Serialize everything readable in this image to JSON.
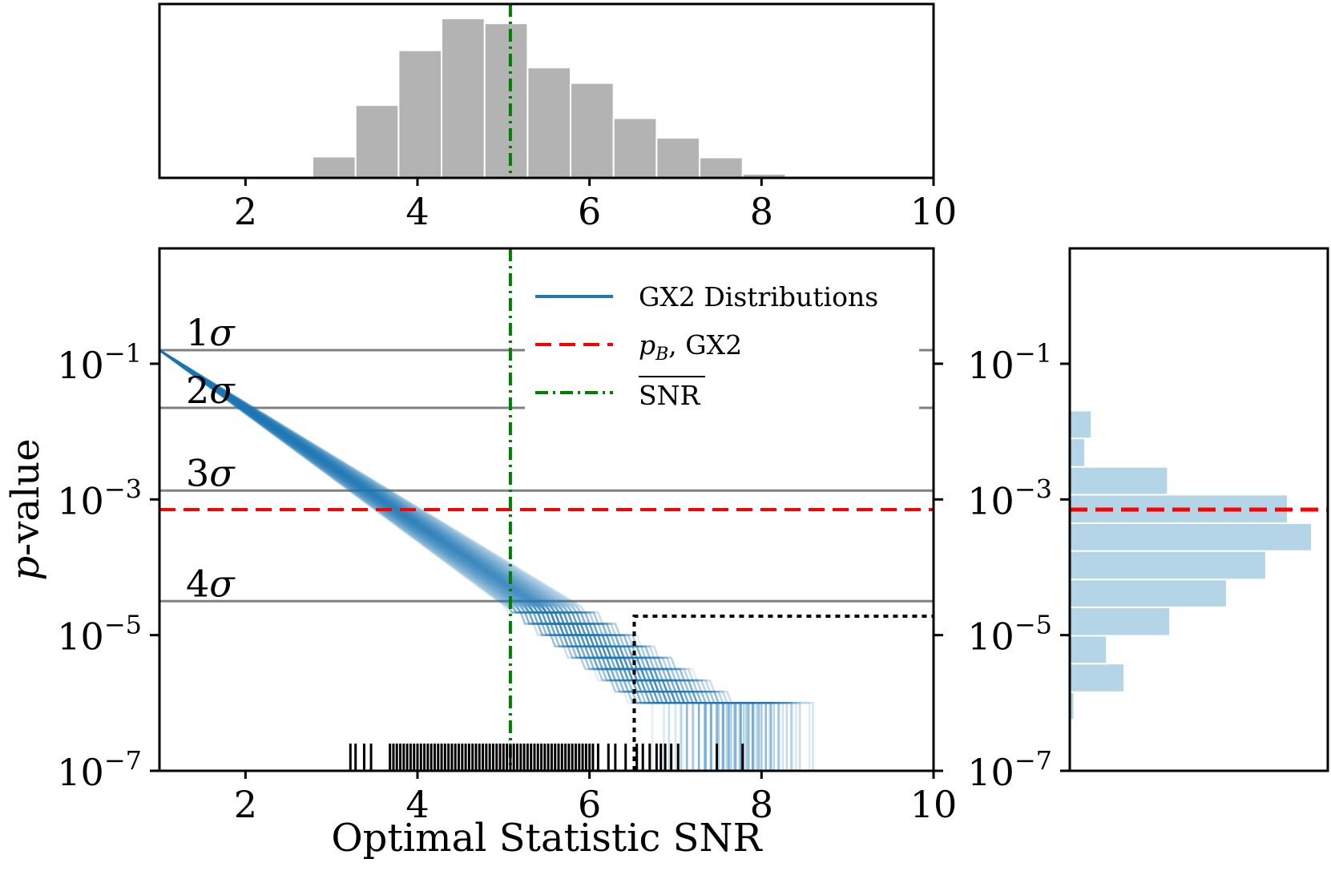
{
  "chart_data": [
    {
      "type": "bar",
      "panel": "top-histogram",
      "title": "",
      "xlabel": "",
      "ylabel": "",
      "xlim": [
        1,
        10
      ],
      "ylim": [
        0,
        195
      ],
      "xticks": [
        2,
        4,
        6,
        8,
        10
      ],
      "bin_edges": [
        2.78,
        3.28,
        3.78,
        4.28,
        4.78,
        5.28,
        5.78,
        6.28,
        6.78,
        7.28,
        7.78,
        8.28,
        8.78
      ],
      "counts": [
        26,
        89,
        156,
        195,
        189,
        135,
        116,
        73,
        49,
        25,
        5,
        1
      ],
      "color": "#b3b3b3",
      "reference_line": {
        "x": 5.08,
        "label": "mean SNR",
        "color": "#008000"
      }
    },
    {
      "type": "line",
      "panel": "main",
      "xlabel": "Optimal Statistic SNR",
      "ylabel_italic": "p",
      "ylabel_rest": "-value",
      "xlim": [
        1,
        10
      ],
      "ylim_log10": [
        -7,
        0.7
      ],
      "xticks": [
        2,
        4,
        6,
        8,
        10
      ],
      "yticks": [
        {
          "base": "10",
          "exp": "−1",
          "log10": -1
        },
        {
          "base": "10",
          "exp": "−3",
          "log10": -3
        },
        {
          "base": "10",
          "exp": "−5",
          "log10": -5
        },
        {
          "base": "10",
          "exp": "−7",
          "log10": -7
        }
      ],
      "sigma_lines": [
        {
          "label": "1",
          "symbol": "σ",
          "log10_p": -0.8
        },
        {
          "label": "2",
          "symbol": "σ",
          "log10_p": -1.65
        },
        {
          "label": "3",
          "symbol": "σ",
          "log10_p": -2.87
        },
        {
          "label": "4",
          "symbol": "σ",
          "log10_p": -4.5
        }
      ],
      "series": [
        {
          "name": "GX2 Distributions",
          "kind": "band",
          "color": "#1f77b4",
          "x_start": 1.0,
          "log10_p_start": -0.8,
          "slope_center": -0.855,
          "slope_spread": 0.085,
          "floor_log10_p": -6.0,
          "n_curves": 60
        },
        {
          "name": "p_B, GX2",
          "kind": "hline",
          "log10_p": -3.15,
          "color": "#ff0000"
        },
        {
          "name": "SNR",
          "kind": "vline",
          "x": 5.08,
          "color": "#008000"
        }
      ],
      "legend": {
        "position": "top-right",
        "entries": [
          {
            "text": "GX2 Distributions"
          },
          {
            "pre": "p",
            "sub": "B",
            "post": ", GX2"
          },
          {
            "text": "SNR",
            "overline": true
          }
        ]
      },
      "rug_x": [
        3.22,
        3.28,
        3.38,
        3.46,
        3.68,
        3.72,
        3.76,
        3.8,
        3.84,
        3.88,
        3.92,
        3.96,
        4.0,
        4.04,
        4.08,
        4.12,
        4.16,
        4.2,
        4.24,
        4.28,
        4.32,
        4.36,
        4.4,
        4.44,
        4.48,
        4.52,
        4.56,
        4.6,
        4.64,
        4.68,
        4.72,
        4.76,
        4.8,
        4.84,
        4.88,
        4.92,
        4.96,
        5.0,
        5.04,
        5.08,
        5.12,
        5.16,
        5.2,
        5.24,
        5.28,
        5.32,
        5.36,
        5.4,
        5.44,
        5.48,
        5.52,
        5.56,
        5.6,
        5.64,
        5.68,
        5.72,
        5.76,
        5.8,
        5.84,
        5.88,
        5.92,
        5.96,
        6.0,
        6.04,
        6.1,
        6.22,
        6.3,
        6.42,
        6.55,
        6.62,
        6.7,
        6.78,
        6.83,
        6.88,
        6.95,
        7.03,
        7.48,
        7.78
      ],
      "threshold": {
        "x": 6.52,
        "log10_p": -4.72
      }
    },
    {
      "type": "bar",
      "panel": "right-histogram",
      "orientation": "horizontal",
      "ylim_log10": [
        -7,
        0.7
      ],
      "yticks": [
        {
          "base": "10",
          "exp": "−1",
          "log10": -1
        },
        {
          "base": "10",
          "exp": "−3",
          "log10": -3
        },
        {
          "base": "10",
          "exp": "−5",
          "log10": -5
        },
        {
          "base": "10",
          "exp": "−7",
          "log10": -7
        }
      ],
      "bin_edges_log10": [
        -6.25,
        -5.84,
        -5.42,
        -5.01,
        -4.59,
        -4.18,
        -3.76,
        -3.35,
        -2.93,
        -2.52,
        -2.1,
        -1.69
      ],
      "counts": [
        2,
        25,
        17,
        46,
        72,
        90,
        111,
        100,
        45,
        7,
        10
      ],
      "color": "#a6cee3",
      "reference_line": {
        "log10_p": -3.15,
        "color": "#ff0000"
      }
    }
  ]
}
